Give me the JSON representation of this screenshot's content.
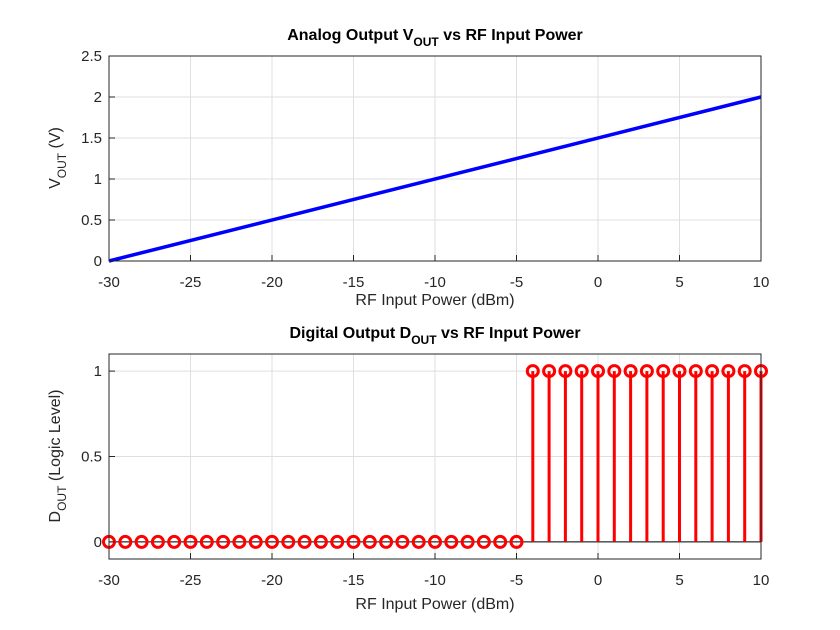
{
  "chart_data": [
    {
      "type": "line",
      "title": {
        "pre": "Analog Output V",
        "sub": "OUT",
        "post": " vs RF Input Power"
      },
      "xlabel": "RF Input Power (dBm)",
      "ylabel": {
        "pre": "V",
        "sub": "OUT",
        "post": " (V)"
      },
      "xlim": [
        -30,
        10
      ],
      "ylim": [
        0,
        2.5
      ],
      "xticks": [
        -30,
        -25,
        -20,
        -15,
        -10,
        -5,
        0,
        5,
        10
      ],
      "yticks": [
        0,
        0.5,
        1,
        1.5,
        2,
        2.5
      ],
      "grid": true,
      "color": "#0000ff",
      "series": [
        {
          "x": [
            -30,
            10
          ],
          "y": [
            0,
            2
          ]
        }
      ]
    },
    {
      "type": "stem",
      "title": {
        "pre": "Digital Output D",
        "sub": "OUT",
        "post": " vs RF Input Power"
      },
      "xlabel": "RF Input Power (dBm)",
      "ylabel": {
        "pre": "D",
        "sub": "OUT",
        "post": " (Logic Level)"
      },
      "xlim": [
        -30,
        10
      ],
      "ylim": [
        -0.1,
        1.1
      ],
      "xticks": [
        -30,
        -25,
        -20,
        -15,
        -10,
        -5,
        0,
        5,
        10
      ],
      "yticks": [
        0,
        0.5,
        1
      ],
      "grid": true,
      "color": "#ff0000",
      "series": [
        {
          "x": [
            -30,
            -29,
            -28,
            -27,
            -26,
            -25,
            -24,
            -23,
            -22,
            -21,
            -20,
            -19,
            -18,
            -17,
            -16,
            -15,
            -14,
            -13,
            -12,
            -11,
            -10,
            -9,
            -8,
            -7,
            -6,
            -5,
            -4,
            -3,
            -2,
            -1,
            0,
            1,
            2,
            3,
            4,
            5,
            6,
            7,
            8,
            9,
            10
          ],
          "y": [
            0,
            0,
            0,
            0,
            0,
            0,
            0,
            0,
            0,
            0,
            0,
            0,
            0,
            0,
            0,
            0,
            0,
            0,
            0,
            0,
            0,
            0,
            0,
            0,
            0,
            0,
            1,
            1,
            1,
            1,
            1,
            1,
            1,
            1,
            1,
            1,
            1,
            1,
            1,
            1,
            1
          ]
        }
      ]
    }
  ]
}
